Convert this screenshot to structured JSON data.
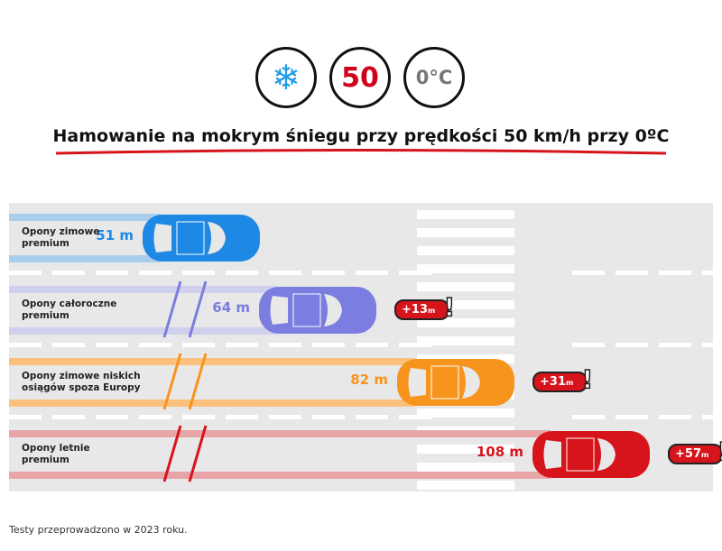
{
  "header": {
    "icons": [
      {
        "name": "snowflake-icon",
        "text": "❄",
        "color": "#1e9be6"
      },
      {
        "name": "speed-limit-icon",
        "text": "50",
        "color": "#d0021b"
      },
      {
        "name": "temperature-icon",
        "text": "0°C",
        "color": "#777777"
      }
    ],
    "title": "Hamowanie na mokrym śniegu przy prędkości 50 km/h przy 0ºC"
  },
  "lanes": [
    {
      "label_1": "Opony zimowe",
      "label_2": "premium",
      "distance": "51 m",
      "color": "#1e88e5",
      "trail": "#a9cdec"
    },
    {
      "label_1": "Opony całoroczne",
      "label_2": "premium",
      "distance": "64 m",
      "color": "#7b7de0",
      "trail": "#cfcfee",
      "extra": "+13",
      "unit": "m"
    },
    {
      "label_1": "Opony zimowe niskich",
      "label_2": "osiągów spoza Europy",
      "distance": "82 m",
      "color": "#f7941d",
      "trail": "#fbc07c",
      "extra": "+31",
      "unit": "m"
    },
    {
      "label_1": "Opony letnie",
      "label_2": "premium",
      "distance": "108 m",
      "color": "#d7131b",
      "trail": "#e8a5a8",
      "extra": "+57",
      "unit": "m"
    }
  ],
  "footer": "Testy przeprowadzono w 2023 roku."
}
